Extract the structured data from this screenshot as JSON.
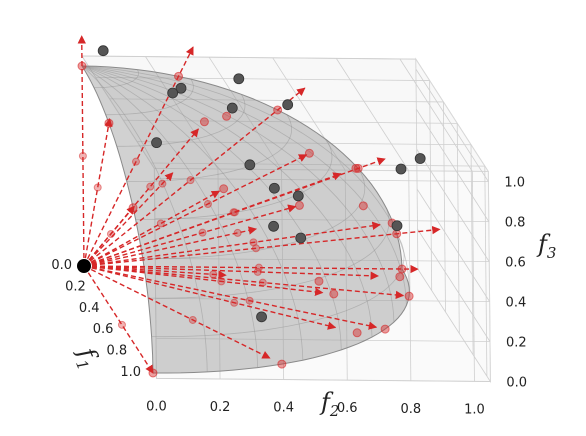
{
  "chart_data": {
    "type": "scatter",
    "title": "",
    "projection": "3d",
    "grid": true,
    "axes": {
      "f1": {
        "label": "f",
        "subscript": "1",
        "ticks": [
          "0.0",
          "0.2",
          "0.4",
          "0.6",
          "0.8",
          "1.0"
        ],
        "lim": [
          0,
          1.05
        ]
      },
      "f2": {
        "label": "f",
        "subscript": "2",
        "ticks": [
          "0.0",
          "0.2",
          "0.4",
          "0.6",
          "0.8",
          "1.0"
        ],
        "lim": [
          0,
          1.05
        ]
      },
      "f3": {
        "label": "f",
        "subscript": "3",
        "ticks": [
          "0.0",
          "0.2",
          "0.4",
          "0.6",
          "0.8",
          "1.0"
        ],
        "lim": [
          0,
          1.05
        ]
      }
    },
    "surface": {
      "shape": "unit-sphere-octant",
      "color": "#9a9a9a",
      "opacity": 0.45
    },
    "colors": {
      "points": "#555555",
      "vectors": "#d62728",
      "origin": "#000000"
    },
    "origin": [
      0,
      0,
      0
    ],
    "reference_vectors": [
      [
        0.0,
        0.0,
        1.15
      ],
      [
        0.0,
        0.35,
        1.1
      ],
      [
        0.0,
        0.7,
        0.9
      ],
      [
        0.0,
        0.95,
        0.55
      ],
      [
        0.0,
        1.12,
        0.2
      ],
      [
        0.0,
        1.05,
        0.0
      ],
      [
        0.25,
        0.95,
        0.0
      ],
      [
        0.55,
        0.8,
        0.0
      ],
      [
        0.85,
        0.4,
        0.0
      ],
      [
        1.0,
        0.0,
        0.0
      ],
      [
        0.4,
        0.0,
        0.95
      ],
      [
        0.75,
        0.0,
        0.7
      ],
      [
        0.3,
        0.3,
        0.85
      ],
      [
        0.55,
        0.55,
        0.6
      ],
      [
        0.25,
        0.65,
        0.7
      ],
      [
        0.6,
        0.3,
        0.7
      ],
      [
        0.15,
        0.9,
        0.3
      ],
      [
        0.35,
        0.85,
        0.15
      ],
      [
        0.7,
        0.6,
        0.25
      ],
      [
        0.45,
        0.35,
        0.2
      ],
      [
        0.2,
        0.5,
        0.3
      ],
      [
        0.15,
        0.25,
        0.55
      ],
      [
        0.05,
        0.8,
        0.5
      ],
      [
        0.65,
        0.65,
        0.05
      ]
    ],
    "points": [
      [
        0.08,
        0.05,
        1.12
      ],
      [
        0.2,
        0.45,
        1.05
      ],
      [
        0.05,
        0.3,
        0.92
      ],
      [
        0.02,
        0.28,
        0.88
      ],
      [
        0.1,
        0.45,
        0.85
      ],
      [
        0.12,
        0.62,
        0.88
      ],
      [
        0.15,
        0.2,
        0.7
      ],
      [
        0.35,
        0.45,
        0.7
      ],
      [
        0.45,
        0.58,
        0.6
      ],
      [
        0.38,
        0.52,
        0.6
      ],
      [
        0.55,
        0.48,
        0.5
      ],
      [
        0.62,
        0.55,
        0.48
      ],
      [
        0.05,
        1.05,
        0.58
      ],
      [
        0.0,
        1.0,
        0.5
      ],
      [
        0.12,
        0.96,
        0.28
      ],
      [
        0.5,
        0.45,
        0.02
      ]
    ]
  }
}
